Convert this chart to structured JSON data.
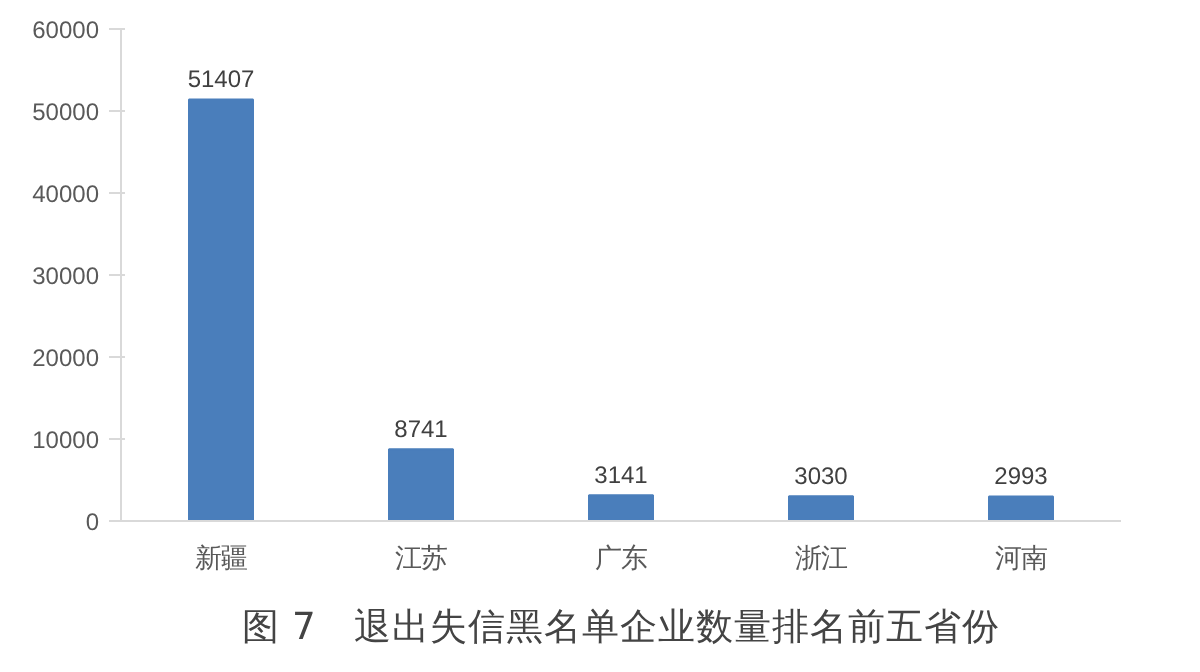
{
  "chart_data": {
    "type": "bar",
    "title": "图 7　退出失信黑名单企业数量排名前五省份",
    "categories": [
      "新疆",
      "江苏",
      "广东",
      "浙江",
      "河南"
    ],
    "values": [
      51407,
      8741,
      3141,
      3030,
      2993
    ],
    "color": "#4a7ebb",
    "ylim": [
      0,
      60000
    ],
    "yticks": [
      0,
      10000,
      20000,
      30000,
      40000,
      50000,
      60000
    ],
    "data_labels": true,
    "grid": false
  }
}
